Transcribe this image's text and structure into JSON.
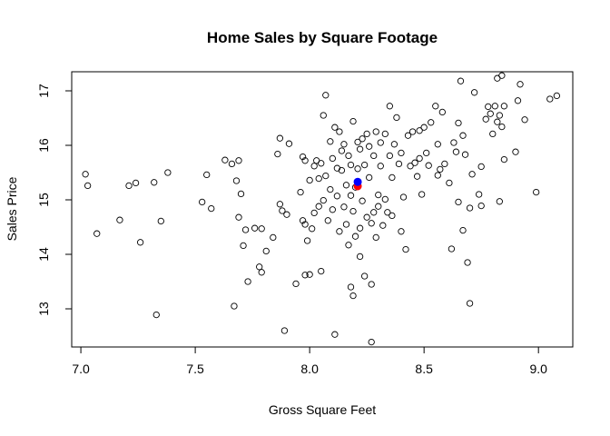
{
  "chart_data": {
    "type": "scatter",
    "title": "Home Sales by Square Footage",
    "xlabel": "Gross Square Feet",
    "ylabel": "Sales Price",
    "xlim": [
      6.96,
      9.15
    ],
    "ylim": [
      12.3,
      17.35
    ],
    "xticks": [
      7.0,
      7.5,
      8.0,
      8.5,
      9.0
    ],
    "xtick_labels": [
      "7.0",
      "7.5",
      "8.0",
      "8.5",
      "9.0"
    ],
    "yticks": [
      13,
      14,
      15,
      16,
      17
    ],
    "ytick_labels": [
      "13",
      "14",
      "15",
      "16",
      "17"
    ],
    "grid": false,
    "series": [
      {
        "marker": "open-circle",
        "color": "#000000",
        "points": [
          [
            7.02,
            15.47
          ],
          [
            7.03,
            15.26
          ],
          [
            7.07,
            14.38
          ],
          [
            7.17,
            14.63
          ],
          [
            7.21,
            15.26
          ],
          [
            7.24,
            15.31
          ],
          [
            7.26,
            14.22
          ],
          [
            7.32,
            15.32
          ],
          [
            7.33,
            12.89
          ],
          [
            7.35,
            14.61
          ],
          [
            7.38,
            15.5
          ],
          [
            7.53,
            14.96
          ],
          [
            7.55,
            15.46
          ],
          [
            7.57,
            14.84
          ],
          [
            7.63,
            15.73
          ],
          [
            7.66,
            15.66
          ],
          [
            7.67,
            13.05
          ],
          [
            7.68,
            15.35
          ],
          [
            7.69,
            15.72
          ],
          [
            7.69,
            14.68
          ],
          [
            7.7,
            15.11
          ],
          [
            7.71,
            14.16
          ],
          [
            7.72,
            14.45
          ],
          [
            7.73,
            13.5
          ],
          [
            7.76,
            14.48
          ],
          [
            7.78,
            13.77
          ],
          [
            7.79,
            13.67
          ],
          [
            7.79,
            14.47
          ],
          [
            7.81,
            14.06
          ],
          [
            7.84,
            14.31
          ],
          [
            7.86,
            15.84
          ],
          [
            7.87,
            14.92
          ],
          [
            7.87,
            16.13
          ],
          [
            7.88,
            14.8
          ],
          [
            7.89,
            12.6
          ],
          [
            7.9,
            14.73
          ],
          [
            7.91,
            16.03
          ],
          [
            7.94,
            13.46
          ],
          [
            7.96,
            15.14
          ],
          [
            7.97,
            15.79
          ],
          [
            7.97,
            14.62
          ],
          [
            7.98,
            13.62
          ],
          [
            7.98,
            14.55
          ],
          [
            7.98,
            15.72
          ],
          [
            7.99,
            14.25
          ],
          [
            8.0,
            13.63
          ],
          [
            8.0,
            15.36
          ],
          [
            8.01,
            14.47
          ],
          [
            8.02,
            15.62
          ],
          [
            8.02,
            14.76
          ],
          [
            8.03,
            15.72
          ],
          [
            8.04,
            15.39
          ],
          [
            8.04,
            14.88
          ],
          [
            8.05,
            15.67
          ],
          [
            8.05,
            13.69
          ],
          [
            8.06,
            16.55
          ],
          [
            8.06,
            14.99
          ],
          [
            8.07,
            16.92
          ],
          [
            8.07,
            15.44
          ],
          [
            8.08,
            14.62
          ],
          [
            8.09,
            15.19
          ],
          [
            8.09,
            16.07
          ],
          [
            8.1,
            15.76
          ],
          [
            8.1,
            14.82
          ],
          [
            8.11,
            12.53
          ],
          [
            8.11,
            16.33
          ],
          [
            8.12,
            15.07
          ],
          [
            8.12,
            15.58
          ],
          [
            8.13,
            16.25
          ],
          [
            8.13,
            14.42
          ],
          [
            8.14,
            15.9
          ],
          [
            8.14,
            15.54
          ],
          [
            8.15,
            14.87
          ],
          [
            8.15,
            16.02
          ],
          [
            8.16,
            14.55
          ],
          [
            8.16,
            15.27
          ],
          [
            8.17,
            15.81
          ],
          [
            8.17,
            14.17
          ],
          [
            8.18,
            15.08
          ],
          [
            8.18,
            15.64
          ],
          [
            8.18,
            13.4
          ],
          [
            8.19,
            16.44
          ],
          [
            8.19,
            14.79
          ],
          [
            8.19,
            13.24
          ],
          [
            8.2,
            15.23
          ],
          [
            8.2,
            14.33
          ],
          [
            8.21,
            16.06
          ],
          [
            8.21,
            15.57
          ],
          [
            8.22,
            14.48
          ],
          [
            8.22,
            15.93
          ],
          [
            8.22,
            13.96
          ],
          [
            8.23,
            16.12
          ],
          [
            8.23,
            14.98
          ],
          [
            8.24,
            15.64
          ],
          [
            8.24,
            13.6
          ],
          [
            8.25,
            16.21
          ],
          [
            8.25,
            14.68
          ],
          [
            8.26,
            15.41
          ],
          [
            8.26,
            15.98
          ],
          [
            8.27,
            14.57
          ],
          [
            8.27,
            13.45
          ],
          [
            8.27,
            12.39
          ],
          [
            8.28,
            15.81
          ],
          [
            8.28,
            14.77
          ],
          [
            8.29,
            16.25
          ],
          [
            8.29,
            14.31
          ],
          [
            8.3,
            15.09
          ],
          [
            8.3,
            14.88
          ],
          [
            8.31,
            16.05
          ],
          [
            8.31,
            15.62
          ],
          [
            8.32,
            14.53
          ],
          [
            8.33,
            16.21
          ],
          [
            8.33,
            15.01
          ],
          [
            8.34,
            14.77
          ],
          [
            8.35,
            15.81
          ],
          [
            8.35,
            16.72
          ],
          [
            8.36,
            14.71
          ],
          [
            8.36,
            15.41
          ],
          [
            8.37,
            16.02
          ],
          [
            8.38,
            16.51
          ],
          [
            8.39,
            15.66
          ],
          [
            8.4,
            14.42
          ],
          [
            8.4,
            15.86
          ],
          [
            8.41,
            15.05
          ],
          [
            8.42,
            14.09
          ],
          [
            8.43,
            16.18
          ],
          [
            8.44,
            15.62
          ],
          [
            8.45,
            16.25
          ],
          [
            8.46,
            15.68
          ],
          [
            8.47,
            15.43
          ],
          [
            8.48,
            15.76
          ],
          [
            8.48,
            16.27
          ],
          [
            8.49,
            15.1
          ],
          [
            8.5,
            16.33
          ],
          [
            8.51,
            15.86
          ],
          [
            8.52,
            15.63
          ],
          [
            8.53,
            16.42
          ],
          [
            8.55,
            16.72
          ],
          [
            8.56,
            16.02
          ],
          [
            8.56,
            15.45
          ],
          [
            8.57,
            15.56
          ],
          [
            8.58,
            16.61
          ],
          [
            8.59,
            15.66
          ],
          [
            8.61,
            15.31
          ],
          [
            8.62,
            14.1
          ],
          [
            8.63,
            16.05
          ],
          [
            8.64,
            15.88
          ],
          [
            8.65,
            14.96
          ],
          [
            8.65,
            16.41
          ],
          [
            8.66,
            17.18
          ],
          [
            8.67,
            16.18
          ],
          [
            8.67,
            14.44
          ],
          [
            8.68,
            15.83
          ],
          [
            8.69,
            13.85
          ],
          [
            8.7,
            14.85
          ],
          [
            8.7,
            13.1
          ],
          [
            8.71,
            15.47
          ],
          [
            8.72,
            16.97
          ],
          [
            8.74,
            15.1
          ],
          [
            8.75,
            15.61
          ],
          [
            8.75,
            14.89
          ],
          [
            8.77,
            16.48
          ],
          [
            8.78,
            16.71
          ],
          [
            8.79,
            16.58
          ],
          [
            8.8,
            16.21
          ],
          [
            8.81,
            16.72
          ],
          [
            8.82,
            17.23
          ],
          [
            8.82,
            16.43
          ],
          [
            8.83,
            16.55
          ],
          [
            8.83,
            14.97
          ],
          [
            8.84,
            17.28
          ],
          [
            8.84,
            16.34
          ],
          [
            8.85,
            15.74
          ],
          [
            8.85,
            16.72
          ],
          [
            8.9,
            15.88
          ],
          [
            8.91,
            16.82
          ],
          [
            8.92,
            17.12
          ],
          [
            8.94,
            16.47
          ],
          [
            8.99,
            15.14
          ],
          [
            9.05,
            16.85
          ],
          [
            9.08,
            16.91
          ]
        ]
      },
      {
        "marker": "filled-circle",
        "color": "#ff0000",
        "points": [
          [
            8.21,
            15.25
          ]
        ]
      },
      {
        "marker": "filled-circle",
        "color": "#0000ff",
        "points": [
          [
            8.21,
            15.33
          ]
        ]
      }
    ]
  }
}
